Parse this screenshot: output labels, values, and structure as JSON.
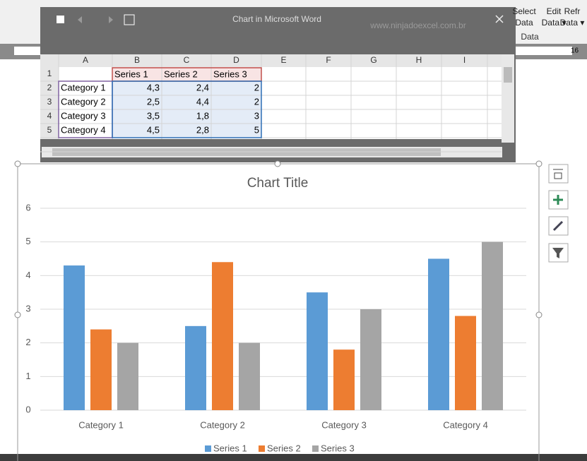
{
  "window": {
    "title": "Chart in Microsoft Word",
    "watermark": "www.ninjadoexcel.com.br"
  },
  "ribbon": {
    "buttons": [
      [
        "Select",
        "Data"
      ],
      [
        "Edit",
        "Data ▾"
      ],
      [
        "Refr",
        "Data ▾"
      ]
    ],
    "group": "Data",
    "ruler": "16"
  },
  "sheet": {
    "column_headers": [
      "A",
      "B",
      "C",
      "D",
      "E",
      "F",
      "G",
      "H",
      "I"
    ],
    "row_headers": [
      "1",
      "2",
      "3",
      "4",
      "5"
    ],
    "header": [
      "Series 1",
      "Series 2",
      "Series 3"
    ],
    "rows": [
      [
        "Category 1",
        "4,3",
        "2,4",
        "2"
      ],
      [
        "Category 2",
        "2,5",
        "4,4",
        "2"
      ],
      [
        "Category 3",
        "3,5",
        "1,8",
        "3"
      ],
      [
        "Category 4",
        "4,5",
        "2,8",
        "5"
      ]
    ]
  },
  "chart_data": {
    "type": "bar",
    "title": "Chart Title",
    "categories": [
      "Category 1",
      "Category 2",
      "Category 3",
      "Category 4"
    ],
    "series": [
      {
        "name": "Series 1",
        "color": "#5b9bd5",
        "values": [
          4.3,
          2.5,
          3.5,
          4.5
        ]
      },
      {
        "name": "Series 2",
        "color": "#ed7d31",
        "values": [
          2.4,
          4.4,
          1.8,
          2.8
        ]
      },
      {
        "name": "Series 3",
        "color": "#a5a5a5",
        "values": [
          2,
          2,
          3,
          5
        ]
      }
    ],
    "ylim": [
      0,
      6
    ],
    "yticks": [
      0,
      1,
      2,
      3,
      4,
      5,
      6
    ],
    "grid": true,
    "legend": "bottom"
  }
}
